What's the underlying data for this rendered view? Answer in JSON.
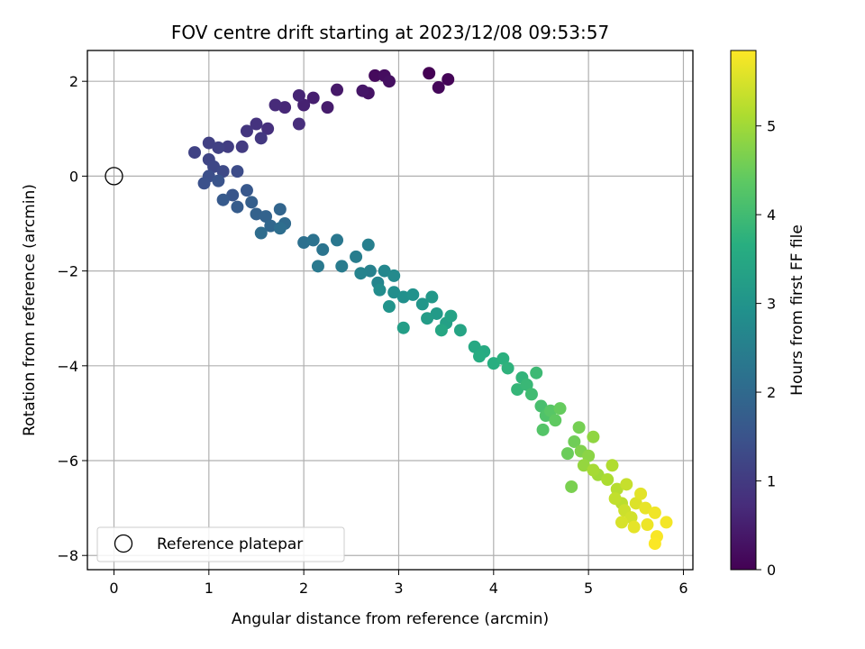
{
  "chart_data": {
    "type": "scatter",
    "title": "FOV centre drift starting at 2023/12/08 09:53:57",
    "xlabel": "Angular distance from reference (arcmin)",
    "ylabel": "Rotation from reference (arcmin)",
    "xlim": [
      -0.28,
      6.1
    ],
    "ylim": [
      -8.3,
      2.65
    ],
    "xticks": [
      0,
      1,
      2,
      3,
      4,
      5,
      6
    ],
    "xtick_labels": [
      "0",
      "1",
      "2",
      "3",
      "4",
      "5",
      "6"
    ],
    "yticks": [
      2,
      0,
      -2,
      -4,
      -6,
      -8
    ],
    "ytick_labels": [
      "2",
      "0",
      "−2",
      "−4",
      "−6",
      "−8"
    ],
    "grid": true,
    "colorbar": {
      "label": "Hours from first FF file",
      "colormap": "viridis",
      "range": [
        0,
        5.85
      ],
      "ticks": [
        0,
        1,
        2,
        3,
        4,
        5
      ],
      "tick_labels": [
        "0",
        "1",
        "2",
        "3",
        "4",
        "5"
      ]
    },
    "legend": {
      "position": "lower-left",
      "entries": [
        "Reference platepar"
      ]
    },
    "reference_point": {
      "x": 0,
      "y": 0,
      "name": "Reference platepar"
    },
    "series": [
      {
        "points": [
          {
            "x": 3.32,
            "y": 2.17,
            "h": 0.0
          },
          {
            "x": 3.52,
            "y": 2.04,
            "h": 0.05
          },
          {
            "x": 3.42,
            "y": 1.87,
            "h": 0.1
          },
          {
            "x": 2.75,
            "y": 2.12,
            "h": 0.15
          },
          {
            "x": 2.85,
            "y": 2.12,
            "h": 0.2
          },
          {
            "x": 2.9,
            "y": 2.0,
            "h": 0.25
          },
          {
            "x": 2.68,
            "y": 1.75,
            "h": 0.3
          },
          {
            "x": 2.62,
            "y": 1.8,
            "h": 0.35
          },
          {
            "x": 2.35,
            "y": 1.82,
            "h": 0.4
          },
          {
            "x": 2.25,
            "y": 1.45,
            "h": 0.45
          },
          {
            "x": 2.1,
            "y": 1.65,
            "h": 0.5
          },
          {
            "x": 2.0,
            "y": 1.5,
            "h": 0.55
          },
          {
            "x": 1.95,
            "y": 1.7,
            "h": 0.6
          },
          {
            "x": 1.8,
            "y": 1.45,
            "h": 0.65
          },
          {
            "x": 1.7,
            "y": 1.5,
            "h": 0.7
          },
          {
            "x": 1.95,
            "y": 1.1,
            "h": 0.75
          },
          {
            "x": 1.62,
            "y": 1.0,
            "h": 0.8
          },
          {
            "x": 1.5,
            "y": 1.1,
            "h": 0.85
          },
          {
            "x": 1.4,
            "y": 0.95,
            "h": 0.9
          },
          {
            "x": 1.55,
            "y": 0.8,
            "h": 0.95
          },
          {
            "x": 1.35,
            "y": 0.62,
            "h": 1.0
          },
          {
            "x": 1.2,
            "y": 0.62,
            "h": 1.05
          },
          {
            "x": 1.0,
            "y": 0.7,
            "h": 1.1
          },
          {
            "x": 1.1,
            "y": 0.6,
            "h": 1.12
          },
          {
            "x": 0.85,
            "y": 0.5,
            "h": 1.15
          },
          {
            "x": 1.0,
            "y": 0.35,
            "h": 1.2
          },
          {
            "x": 1.05,
            "y": 0.2,
            "h": 1.25
          },
          {
            "x": 1.15,
            "y": 0.1,
            "h": 1.3
          },
          {
            "x": 1.3,
            "y": 0.1,
            "h": 1.35
          },
          {
            "x": 1.0,
            "y": 0.0,
            "h": 1.4
          },
          {
            "x": 0.95,
            "y": -0.15,
            "h": 1.45
          },
          {
            "x": 1.1,
            "y": -0.1,
            "h": 1.5
          },
          {
            "x": 1.25,
            "y": -0.4,
            "h": 1.55
          },
          {
            "x": 1.4,
            "y": -0.3,
            "h": 1.6
          },
          {
            "x": 1.15,
            "y": -0.5,
            "h": 1.65
          },
          {
            "x": 1.3,
            "y": -0.65,
            "h": 1.7
          },
          {
            "x": 1.45,
            "y": -0.55,
            "h": 1.75
          },
          {
            "x": 1.5,
            "y": -0.8,
            "h": 1.8
          },
          {
            "x": 1.6,
            "y": -0.85,
            "h": 1.85
          },
          {
            "x": 1.75,
            "y": -0.7,
            "h": 1.9
          },
          {
            "x": 1.65,
            "y": -1.05,
            "h": 1.95
          },
          {
            "x": 1.8,
            "y": -1.0,
            "h": 2.0
          },
          {
            "x": 1.55,
            "y": -1.2,
            "h": 2.05
          },
          {
            "x": 1.75,
            "y": -1.1,
            "h": 2.1
          },
          {
            "x": 2.0,
            "y": -1.4,
            "h": 2.15
          },
          {
            "x": 2.1,
            "y": -1.35,
            "h": 2.2
          },
          {
            "x": 2.2,
            "y": -1.55,
            "h": 2.25
          },
          {
            "x": 2.35,
            "y": -1.35,
            "h": 2.3
          },
          {
            "x": 2.15,
            "y": -1.9,
            "h": 2.35
          },
          {
            "x": 2.4,
            "y": -1.9,
            "h": 2.4
          },
          {
            "x": 2.55,
            "y": -1.7,
            "h": 2.45
          },
          {
            "x": 2.68,
            "y": -1.45,
            "h": 2.5
          },
          {
            "x": 2.7,
            "y": -2.0,
            "h": 2.55
          },
          {
            "x": 2.6,
            "y": -2.05,
            "h": 2.6
          },
          {
            "x": 2.78,
            "y": -2.25,
            "h": 2.65
          },
          {
            "x": 2.85,
            "y": -2.0,
            "h": 2.7
          },
          {
            "x": 2.95,
            "y": -2.1,
            "h": 2.75
          },
          {
            "x": 2.8,
            "y": -2.4,
            "h": 2.8
          },
          {
            "x": 2.95,
            "y": -2.45,
            "h": 2.85
          },
          {
            "x": 3.05,
            "y": -2.55,
            "h": 2.9
          },
          {
            "x": 3.15,
            "y": -2.5,
            "h": 2.95
          },
          {
            "x": 2.9,
            "y": -2.75,
            "h": 3.0
          },
          {
            "x": 3.25,
            "y": -2.7,
            "h": 3.05
          },
          {
            "x": 3.35,
            "y": -2.55,
            "h": 3.1
          },
          {
            "x": 3.4,
            "y": -2.9,
            "h": 3.15
          },
          {
            "x": 3.3,
            "y": -3.0,
            "h": 3.2
          },
          {
            "x": 3.05,
            "y": -3.2,
            "h": 3.25
          },
          {
            "x": 3.5,
            "y": -3.1,
            "h": 3.3
          },
          {
            "x": 3.55,
            "y": -2.95,
            "h": 3.35
          },
          {
            "x": 3.65,
            "y": -3.25,
            "h": 3.4
          },
          {
            "x": 3.45,
            "y": -3.25,
            "h": 3.45
          },
          {
            "x": 3.8,
            "y": -3.6,
            "h": 3.5
          },
          {
            "x": 3.9,
            "y": -3.7,
            "h": 3.55
          },
          {
            "x": 3.85,
            "y": -3.8,
            "h": 3.6
          },
          {
            "x": 4.0,
            "y": -3.95,
            "h": 3.65
          },
          {
            "x": 4.1,
            "y": -3.85,
            "h": 3.7
          },
          {
            "x": 4.15,
            "y": -4.05,
            "h": 3.75
          },
          {
            "x": 4.3,
            "y": -4.25,
            "h": 3.8
          },
          {
            "x": 4.25,
            "y": -4.5,
            "h": 3.85
          },
          {
            "x": 4.35,
            "y": -4.4,
            "h": 3.9
          },
          {
            "x": 4.45,
            "y": -4.15,
            "h": 3.95
          },
          {
            "x": 4.4,
            "y": -4.6,
            "h": 4.0
          },
          {
            "x": 4.5,
            "y": -4.85,
            "h": 4.1
          },
          {
            "x": 4.55,
            "y": -5.05,
            "h": 4.2
          },
          {
            "x": 4.52,
            "y": -5.35,
            "h": 4.25
          },
          {
            "x": 4.6,
            "y": -4.95,
            "h": 4.3
          },
          {
            "x": 4.65,
            "y": -5.15,
            "h": 4.4
          },
          {
            "x": 4.7,
            "y": -4.9,
            "h": 4.45
          },
          {
            "x": 4.78,
            "y": -5.85,
            "h": 4.5
          },
          {
            "x": 4.85,
            "y": -5.6,
            "h": 4.55
          },
          {
            "x": 4.9,
            "y": -5.3,
            "h": 4.6
          },
          {
            "x": 4.82,
            "y": -6.55,
            "h": 4.65
          },
          {
            "x": 4.92,
            "y": -5.8,
            "h": 4.7
          },
          {
            "x": 5.0,
            "y": -5.9,
            "h": 4.8
          },
          {
            "x": 5.05,
            "y": -5.5,
            "h": 4.85
          },
          {
            "x": 4.95,
            "y": -6.1,
            "h": 4.9
          },
          {
            "x": 5.1,
            "y": -6.3,
            "h": 5.0
          },
          {
            "x": 5.05,
            "y": -6.2,
            "h": 5.05
          },
          {
            "x": 5.2,
            "y": -6.4,
            "h": 5.1
          },
          {
            "x": 5.25,
            "y": -6.1,
            "h": 5.15
          },
          {
            "x": 5.3,
            "y": -6.6,
            "h": 5.2
          },
          {
            "x": 5.35,
            "y": -6.9,
            "h": 5.25
          },
          {
            "x": 5.28,
            "y": -6.8,
            "h": 5.3
          },
          {
            "x": 5.4,
            "y": -6.5,
            "h": 5.35
          },
          {
            "x": 5.38,
            "y": -7.05,
            "h": 5.4
          },
          {
            "x": 5.45,
            "y": -7.2,
            "h": 5.45
          },
          {
            "x": 5.35,
            "y": -7.3,
            "h": 5.5
          },
          {
            "x": 5.5,
            "y": -6.9,
            "h": 5.55
          },
          {
            "x": 5.55,
            "y": -6.7,
            "h": 5.6
          },
          {
            "x": 5.48,
            "y": -7.4,
            "h": 5.63
          },
          {
            "x": 5.6,
            "y": -7.0,
            "h": 5.66
          },
          {
            "x": 5.62,
            "y": -7.35,
            "h": 5.7
          },
          {
            "x": 5.7,
            "y": -7.1,
            "h": 5.73
          },
          {
            "x": 5.82,
            "y": -7.3,
            "h": 5.76
          },
          {
            "x": 5.72,
            "y": -7.6,
            "h": 5.8
          },
          {
            "x": 5.7,
            "y": -7.75,
            "h": 5.83
          }
        ]
      }
    ]
  }
}
